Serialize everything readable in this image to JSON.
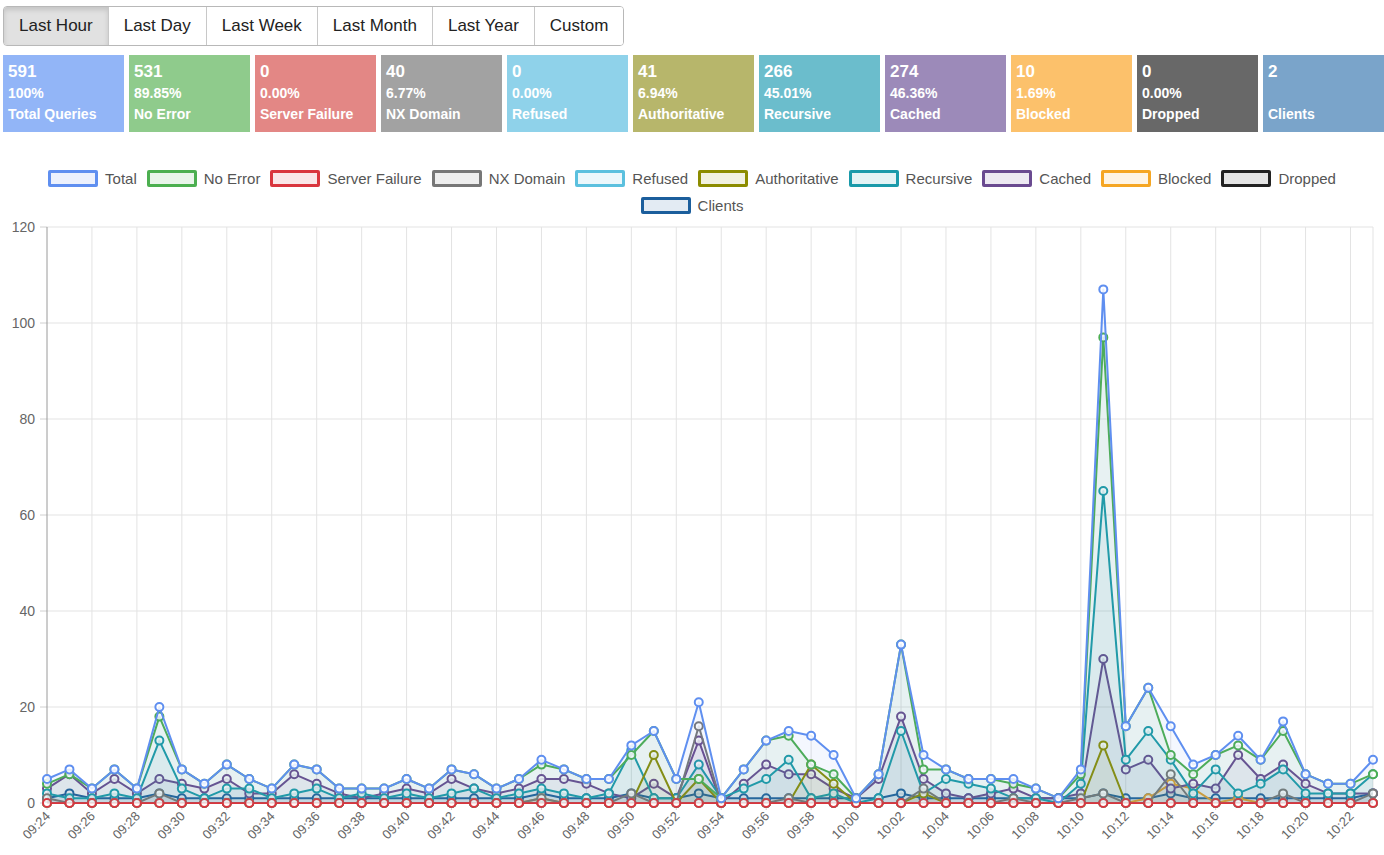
{
  "time_range_buttons": [
    {
      "label": "Last Hour",
      "active": true
    },
    {
      "label": "Last Day",
      "active": false
    },
    {
      "label": "Last Week",
      "active": false
    },
    {
      "label": "Last Month",
      "active": false
    },
    {
      "label": "Last Year",
      "active": false
    },
    {
      "label": "Custom",
      "active": false
    }
  ],
  "stats": [
    {
      "value": 591,
      "percent": "100%",
      "label": "Total Queries",
      "color": "#92b5f7"
    },
    {
      "value": 531,
      "percent": "89.85%",
      "label": "No Error",
      "color": "#8fcb8c"
    },
    {
      "value": 0,
      "percent": "0.00%",
      "label": "Server Failure",
      "color": "#e38785"
    },
    {
      "value": 40,
      "percent": "6.77%",
      "label": "NX Domain",
      "color": "#a2a2a2"
    },
    {
      "value": 0,
      "percent": "0.00%",
      "label": "Refused",
      "color": "#8fd2ea"
    },
    {
      "value": 41,
      "percent": "6.94%",
      "label": "Authoritative",
      "color": "#b7b66b"
    },
    {
      "value": 266,
      "percent": "45.01%",
      "label": "Recursive",
      "color": "#6bbdcc"
    },
    {
      "value": 274,
      "percent": "46.36%",
      "label": "Cached",
      "color": "#9c8ab9"
    },
    {
      "value": 10,
      "percent": "1.69%",
      "label": "Blocked",
      "color": "#fcc16b"
    },
    {
      "value": 0,
      "percent": "0.00%",
      "label": "Dropped",
      "color": "#686868"
    },
    {
      "value": 2,
      "percent": "",
      "label": "Clients",
      "color": "#7aa4ca"
    }
  ],
  "chart_data": {
    "type": "area",
    "legend": "top",
    "grid": true,
    "ylim": [
      0,
      120
    ],
    "yticks": [
      0,
      20,
      40,
      60,
      80,
      100,
      120
    ],
    "categories": [
      "09:24",
      null,
      "09:26",
      null,
      "09:28",
      null,
      "09:30",
      null,
      "09:32",
      null,
      "09:34",
      null,
      "09:36",
      null,
      "09:38",
      null,
      "09:40",
      null,
      "09:42",
      null,
      "09:44",
      null,
      "09:46",
      null,
      "09:48",
      null,
      "09:50",
      null,
      "09:52",
      null,
      "09:54",
      null,
      "09:56",
      null,
      "09:58",
      null,
      "10:00",
      null,
      "10:02",
      null,
      "10:04",
      null,
      "10:06",
      null,
      "10:08",
      null,
      "10:10",
      null,
      "10:12",
      null,
      "10:14",
      null,
      "10:16",
      null,
      "10:18",
      null,
      "10:20",
      null,
      "10:22",
      null
    ],
    "series": [
      {
        "name": "Total",
        "color": "#5f8ff0",
        "marker": "circle",
        "values": [
          5,
          7,
          3,
          7,
          3,
          20,
          7,
          4,
          8,
          5,
          3,
          8,
          7,
          3,
          3,
          3,
          5,
          3,
          7,
          6,
          3,
          5,
          9,
          7,
          5,
          5,
          12,
          15,
          5,
          21,
          1,
          7,
          13,
          15,
          14,
          10,
          1,
          6,
          33,
          10,
          7,
          5,
          5,
          5,
          3,
          1,
          7,
          107,
          16,
          24,
          16,
          8,
          10,
          14,
          9,
          17,
          6,
          4,
          4,
          9
        ]
      },
      {
        "name": "No Error",
        "color": "#4caf50",
        "marker": "circle",
        "values": [
          4,
          6,
          3,
          7,
          3,
          18,
          7,
          4,
          8,
          5,
          3,
          8,
          7,
          3,
          3,
          3,
          5,
          3,
          7,
          6,
          3,
          5,
          8,
          7,
          5,
          5,
          10,
          15,
          5,
          5,
          1,
          7,
          13,
          14,
          8,
          6,
          1,
          6,
          33,
          7,
          7,
          5,
          5,
          4,
          3,
          1,
          6,
          97,
          16,
          24,
          10,
          6,
          10,
          12,
          9,
          15,
          6,
          4,
          4,
          6
        ]
      },
      {
        "name": "Server Failure",
        "color": "#d9363e",
        "marker": "circle",
        "values": [
          0,
          0,
          0,
          0,
          0,
          0,
          0,
          0,
          0,
          0,
          0,
          0,
          0,
          0,
          0,
          0,
          0,
          0,
          0,
          0,
          0,
          0,
          0,
          0,
          0,
          0,
          0,
          0,
          0,
          0,
          0,
          0,
          0,
          0,
          0,
          0,
          0,
          0,
          0,
          0,
          0,
          0,
          0,
          0,
          0,
          0,
          0,
          0,
          0,
          0,
          0,
          0,
          0,
          0,
          0,
          0,
          0,
          0,
          0,
          0
        ]
      },
      {
        "name": "NX Domain",
        "color": "#777777",
        "marker": "circle",
        "values": [
          1,
          0,
          0,
          0,
          0,
          2,
          0,
          0,
          0,
          0,
          0,
          0,
          0,
          0,
          0,
          0,
          0,
          0,
          0,
          0,
          0,
          0,
          1,
          0,
          0,
          0,
          2,
          0,
          0,
          16,
          0,
          0,
          0,
          1,
          0,
          0,
          0,
          0,
          0,
          3,
          0,
          0,
          0,
          1,
          0,
          0,
          1,
          2,
          0,
          0,
          6,
          0,
          0,
          0,
          0,
          2,
          0,
          0,
          0,
          2
        ]
      },
      {
        "name": "Refused",
        "color": "#5bc0de",
        "marker": "circle",
        "values": [
          0,
          0,
          0,
          0,
          0,
          0,
          0,
          0,
          0,
          0,
          0,
          0,
          0,
          0,
          0,
          0,
          0,
          0,
          0,
          0,
          0,
          0,
          0,
          0,
          0,
          0,
          0,
          0,
          0,
          0,
          0,
          0,
          0,
          0,
          0,
          0,
          0,
          0,
          0,
          0,
          0,
          0,
          0,
          0,
          0,
          0,
          0,
          0,
          0,
          0,
          0,
          0,
          0,
          0,
          0,
          0,
          0,
          0,
          0,
          0
        ]
      },
      {
        "name": "Authoritative",
        "color": "#8c8c00",
        "marker": "circle",
        "values": [
          0,
          0,
          0,
          0,
          0,
          0,
          0,
          0,
          0,
          0,
          0,
          0,
          0,
          0,
          0,
          0,
          0,
          0,
          0,
          0,
          0,
          0,
          0,
          0,
          0,
          0,
          0,
          10,
          0,
          5,
          0,
          0,
          0,
          0,
          8,
          4,
          0,
          0,
          0,
          2,
          0,
          0,
          0,
          0,
          0,
          0,
          0,
          12,
          0,
          0,
          0,
          0,
          0,
          0,
          0,
          0,
          0,
          0,
          0,
          0
        ]
      },
      {
        "name": "Recursive",
        "color": "#1a9aaa",
        "marker": "circle",
        "values": [
          2,
          1,
          1,
          2,
          1,
          13,
          3,
          1,
          3,
          3,
          1,
          2,
          3,
          1,
          2,
          1,
          2,
          1,
          2,
          3,
          1,
          2,
          3,
          2,
          1,
          2,
          11,
          1,
          1,
          8,
          1,
          3,
          5,
          9,
          1,
          2,
          0,
          1,
          15,
          2,
          5,
          4,
          3,
          1,
          1,
          0,
          4,
          65,
          9,
          15,
          9,
          2,
          7,
          2,
          4,
          7,
          2,
          2,
          2,
          6
        ]
      },
      {
        "name": "Cached",
        "color": "#6a4a90",
        "marker": "circle",
        "values": [
          3,
          6,
          2,
          5,
          2,
          5,
          4,
          3,
          5,
          2,
          2,
          6,
          4,
          2,
          1,
          2,
          3,
          2,
          5,
          3,
          2,
          3,
          5,
          5,
          4,
          2,
          1,
          4,
          1,
          13,
          0,
          4,
          8,
          6,
          6,
          3,
          1,
          5,
          18,
          5,
          2,
          1,
          2,
          3,
          1,
          1,
          2,
          30,
          7,
          9,
          3,
          4,
          3,
          10,
          5,
          8,
          4,
          2,
          2,
          2
        ]
      },
      {
        "name": "Blocked",
        "color": "#f5a623",
        "marker": "circle",
        "values": [
          0,
          0,
          0,
          0,
          0,
          0,
          0,
          0,
          0,
          0,
          0,
          0,
          0,
          0,
          0,
          0,
          0,
          0,
          0,
          0,
          0,
          0,
          1,
          0,
          0,
          0,
          0,
          0,
          0,
          0,
          0,
          0,
          0,
          0,
          0,
          0,
          0,
          0,
          0,
          0,
          0,
          0,
          0,
          0,
          0,
          0,
          0,
          0,
          0,
          1,
          4,
          3,
          0,
          1,
          0,
          0,
          0,
          0,
          0,
          0
        ]
      },
      {
        "name": "Dropped",
        "color": "#222222",
        "marker": "circle",
        "values": [
          0,
          0,
          0,
          0,
          0,
          0,
          0,
          0,
          0,
          0,
          0,
          0,
          0,
          0,
          0,
          0,
          0,
          0,
          0,
          0,
          0,
          0,
          0,
          0,
          0,
          0,
          0,
          0,
          0,
          0,
          0,
          0,
          0,
          0,
          0,
          0,
          0,
          0,
          0,
          0,
          0,
          0,
          0,
          0,
          0,
          0,
          0,
          0,
          0,
          0,
          0,
          0,
          0,
          0,
          0,
          0,
          0,
          0,
          0,
          0
        ]
      },
      {
        "name": "Clients",
        "color": "#1b5e9c",
        "marker": "circle",
        "values": [
          1,
          2,
          1,
          1,
          1,
          2,
          1,
          1,
          1,
          1,
          1,
          1,
          1,
          1,
          1,
          1,
          1,
          1,
          1,
          1,
          1,
          1,
          2,
          1,
          1,
          1,
          2,
          1,
          1,
          2,
          1,
          1,
          1,
          1,
          1,
          1,
          1,
          1,
          2,
          1,
          1,
          1,
          1,
          1,
          1,
          1,
          1,
          2,
          1,
          1,
          2,
          1,
          1,
          1,
          1,
          1,
          1,
          1,
          1,
          2
        ]
      }
    ]
  }
}
